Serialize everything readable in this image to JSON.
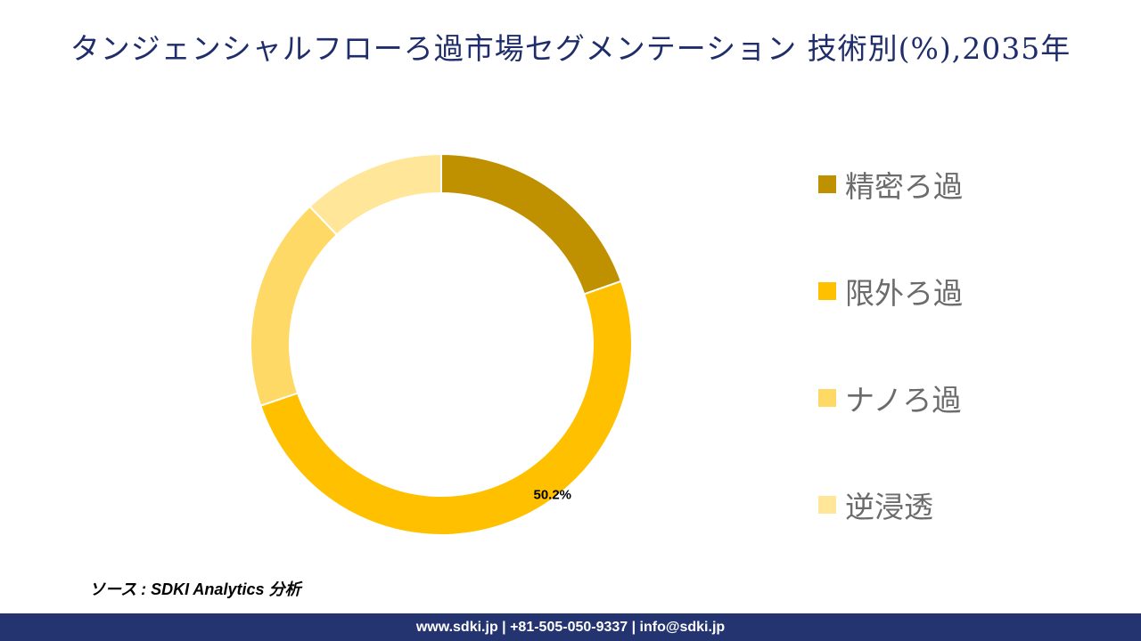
{
  "header": {
    "title": "タンジェンシャルフローろ過市場セグメンテーション 技術別(%),2035年"
  },
  "chart_data": {
    "type": "pie",
    "donut": true,
    "title": "タンジェンシャルフローろ過市場セグメンテーション 技術別(%),2035年",
    "categories": [
      "精密ろ過",
      "限外ろ過",
      "ナノろ過",
      "逆浸透"
    ],
    "values": [
      19.6,
      50.2,
      18.1,
      12.1
    ],
    "colors": [
      "#BF9000",
      "#FFC000",
      "#FFD966",
      "#FFE699"
    ],
    "data_labels": [
      "",
      "50.2%",
      "",
      ""
    ],
    "legend_position": "right"
  },
  "source": "ソース : SDKI Analytics 分析",
  "footer": "www.sdki.jp | +81-505-050-9337 | info@sdki.jp"
}
